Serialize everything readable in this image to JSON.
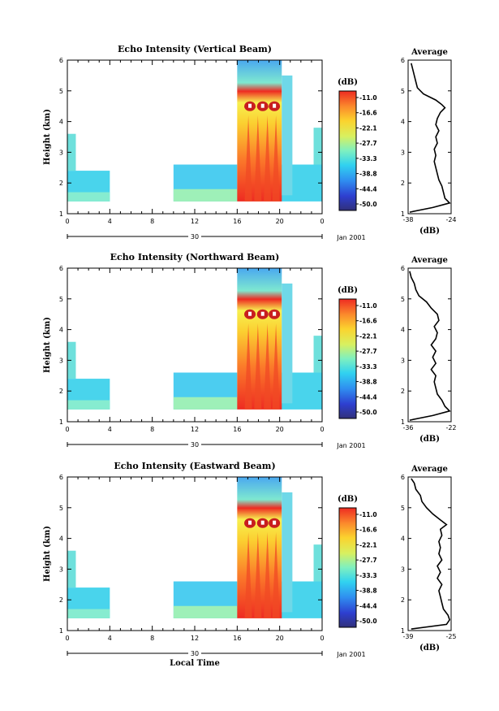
{
  "chart_data": [
    {
      "type": "heatmap",
      "title": "Echo Intensity (Vertical Beam)",
      "ylabel": "Height (km)",
      "xlabel": "",
      "x_ticks": [
        "0",
        "4",
        "8",
        "12",
        "16",
        "20",
        "0"
      ],
      "xlim": [
        0,
        24
      ],
      "ylim": [
        1,
        6
      ],
      "y_ticks": [
        "1",
        "2",
        "3",
        "4",
        "5",
        "6"
      ],
      "date_day": "30",
      "date_label": "Jan 2001",
      "colorbar": {
        "unit": "(dB)",
        "ticks": [
          "-11.0",
          "-16.6",
          "-22.1",
          "-27.7",
          "-33.3",
          "-38.8",
          "-44.4",
          "-50.0"
        ],
        "range": [
          -50.0,
          -11.0
        ]
      },
      "profile": {
        "title": "Average",
        "xlabel": "(dB)",
        "x_ticks": [
          "-38",
          "-24"
        ],
        "xlim": [
          -38,
          -24
        ],
        "ylim": [
          1,
          6
        ],
        "y_ticks": [
          "1",
          "2",
          "3",
          "4",
          "5",
          "6"
        ],
        "height_km": [
          1.05,
          1.2,
          1.35,
          1.5,
          1.7,
          1.9,
          2.1,
          2.3,
          2.5,
          2.7,
          2.9,
          3.1,
          3.3,
          3.5,
          3.7,
          3.9,
          4.1,
          4.3,
          4.45,
          4.55,
          4.7,
          4.9,
          5.1,
          5.3,
          5.5,
          5.7,
          5.9
        ],
        "value_db": [
          -37.5,
          -30.0,
          -24.5,
          -26.0,
          -26.5,
          -27.0,
          -28.0,
          -28.5,
          -29.0,
          -29.5,
          -29.0,
          -29.5,
          -28.5,
          -29.0,
          -28.0,
          -29.0,
          -28.5,
          -27.5,
          -26.0,
          -27.0,
          -29.0,
          -33.0,
          -35.0,
          -35.5,
          -36.0,
          -36.5,
          -37.0
        ]
      }
    },
    {
      "type": "heatmap",
      "title": "Echo Intensity (Northward Beam)",
      "ylabel": "Height (km)",
      "xlabel": "",
      "x_ticks": [
        "0",
        "4",
        "8",
        "12",
        "16",
        "20",
        "0"
      ],
      "xlim": [
        0,
        24
      ],
      "ylim": [
        1,
        6
      ],
      "y_ticks": [
        "1",
        "2",
        "3",
        "4",
        "5",
        "6"
      ],
      "date_day": "30",
      "date_label": "Jan 2001",
      "colorbar": {
        "unit": "(dB)",
        "ticks": [
          "-11.0",
          "-16.6",
          "-22.1",
          "-27.7",
          "-33.3",
          "-38.8",
          "-44.4",
          "-50.0"
        ],
        "range": [
          -50.0,
          -11.0
        ]
      },
      "profile": {
        "title": "Average",
        "xlabel": "(dB)",
        "x_ticks": [
          "-36",
          "-22"
        ],
        "xlim": [
          -36,
          -22
        ],
        "ylim": [
          1,
          6
        ],
        "y_ticks": [
          "1",
          "2",
          "3",
          "4",
          "5",
          "6"
        ],
        "height_km": [
          1.05,
          1.2,
          1.35,
          1.5,
          1.7,
          1.9,
          2.1,
          2.3,
          2.5,
          2.7,
          2.9,
          3.1,
          3.3,
          3.5,
          3.7,
          3.9,
          4.1,
          4.3,
          4.5,
          4.7,
          4.9,
          5.1,
          5.3,
          5.5,
          5.7,
          5.9
        ],
        "value_db": [
          -35.5,
          -28.0,
          -22.5,
          -24.0,
          -25.0,
          -26.5,
          -27.0,
          -27.5,
          -27.0,
          -28.5,
          -27.0,
          -28.0,
          -27.0,
          -28.5,
          -27.0,
          -26.5,
          -27.5,
          -26.0,
          -26.5,
          -28.5,
          -30.0,
          -32.5,
          -33.5,
          -34.0,
          -35.0,
          -35.5
        ]
      }
    },
    {
      "type": "heatmap",
      "title": "Echo Intensity (Eastward Beam)",
      "ylabel": "Height (km)",
      "xlabel": "Local Time",
      "x_ticks": [
        "0",
        "4",
        "8",
        "12",
        "16",
        "20",
        "0"
      ],
      "xlim": [
        0,
        24
      ],
      "ylim": [
        1,
        6
      ],
      "y_ticks": [
        "1",
        "2",
        "3",
        "4",
        "5",
        "6"
      ],
      "date_day": "30",
      "date_label": "Jan 2001",
      "colorbar": {
        "unit": "(dB)",
        "ticks": [
          "-11.0",
          "-16.6",
          "-22.1",
          "-27.7",
          "-33.3",
          "-38.8",
          "-44.4",
          "-50.0"
        ],
        "range": [
          -50.0,
          -11.0
        ]
      },
      "profile": {
        "title": "Average",
        "xlabel": "(dB)",
        "x_ticks": [
          "-39",
          "-25"
        ],
        "xlim": [
          -39,
          -25
        ],
        "ylim": [
          1,
          6
        ],
        "y_ticks": [
          "1",
          "2",
          "3",
          "4",
          "5",
          "6"
        ],
        "height_km": [
          1.05,
          1.2,
          1.35,
          1.5,
          1.7,
          1.9,
          2.1,
          2.3,
          2.5,
          2.7,
          2.9,
          3.1,
          3.3,
          3.5,
          3.7,
          3.9,
          4.1,
          4.3,
          4.45,
          4.6,
          4.8,
          5.0,
          5.2,
          5.4,
          5.6,
          5.8,
          5.95
        ],
        "value_db": [
          -38.0,
          -26.5,
          -25.5,
          -26.0,
          -27.5,
          -28.0,
          -28.5,
          -29.0,
          -28.0,
          -29.5,
          -28.5,
          -29.5,
          -28.0,
          -29.0,
          -28.5,
          -29.0,
          -28.0,
          -28.5,
          -26.5,
          -28.5,
          -31.0,
          -33.0,
          -34.5,
          -35.0,
          -36.5,
          -37.0,
          -38.0
        ]
      }
    }
  ]
}
